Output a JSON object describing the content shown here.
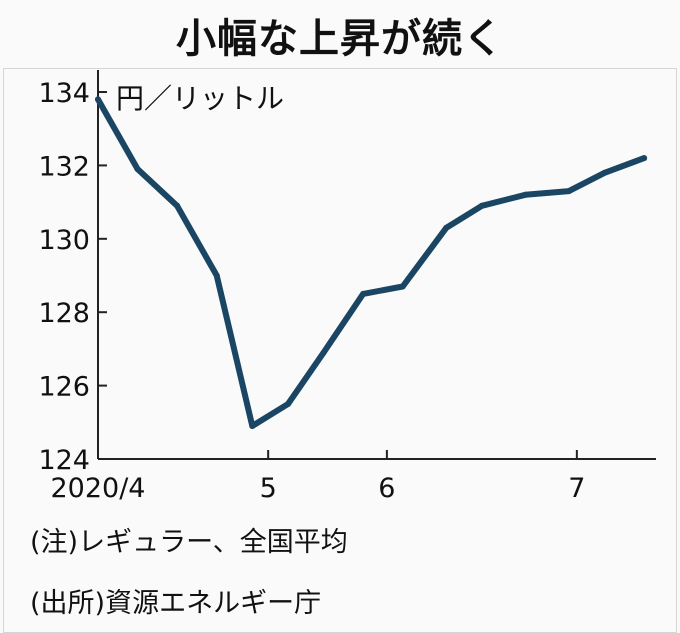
{
  "title": "小幅な上昇が続く",
  "unit_label": "円／リットル",
  "notes": {
    "note1": "(注)レギュラー、全国平均",
    "note2": "(出所)資源エネルギー庁"
  },
  "colors": {
    "line": "#1b4663",
    "axis": "#222222",
    "background": "#fafafa"
  },
  "chart_data": {
    "type": "line",
    "title": "小幅な上昇が続く",
    "ylabel": "円／リットル",
    "ylim": [
      124,
      134.6
    ],
    "yticks": [
      124,
      126,
      128,
      130,
      132,
      134
    ],
    "xlim": [
      0,
      14.1
    ],
    "xticks": [
      {
        "x": 0,
        "label": "2020/4"
      },
      {
        "x": 4.3,
        "label": "5"
      },
      {
        "x": 7.3,
        "label": "6"
      },
      {
        "x": 12.1,
        "label": "7"
      }
    ],
    "series": [
      {
        "x": [
          0,
          1,
          2,
          3,
          3.9,
          4.8,
          5.7,
          6.7,
          7.7,
          8.8,
          9.7,
          10.8,
          11.9,
          12.8,
          13.8
        ],
        "values": [
          133.8,
          131.9,
          130.9,
          129.0,
          124.9,
          125.5,
          126.9,
          128.5,
          128.7,
          130.3,
          130.9,
          131.2,
          131.3,
          131.8,
          132.2
        ]
      }
    ]
  }
}
